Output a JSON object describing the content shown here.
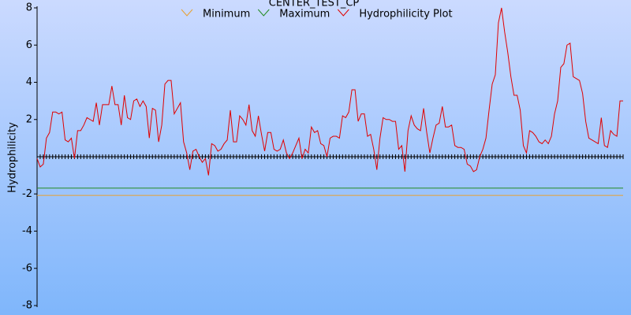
{
  "chart_data": {
    "type": "line",
    "title": "CENTER_TEST_CP",
    "y_label": "Hydrophilicity",
    "ylim": [
      -8,
      8
    ],
    "yticks": [
      -8,
      -6,
      -4,
      -2,
      2,
      4,
      6,
      8
    ],
    "reference_lines": [
      {
        "name": "Minimum",
        "color": "#e8a030",
        "value": -2.08
      },
      {
        "name": "Maximum",
        "color": "#228b22",
        "value": -1.69
      }
    ],
    "series": [
      {
        "name": "Hydrophilicity Plot",
        "color": "#e00000",
        "values": [
          -0.1,
          -0.55,
          -0.4,
          1.0,
          1.3,
          2.4,
          2.4,
          2.3,
          2.4,
          0.9,
          0.8,
          1.0,
          -0.1,
          1.4,
          1.4,
          1.7,
          2.1,
          2.0,
          1.9,
          2.9,
          1.7,
          2.8,
          2.8,
          2.8,
          3.8,
          2.8,
          2.8,
          1.7,
          3.3,
          2.1,
          2.0,
          3.0,
          3.1,
          2.7,
          3.0,
          2.7,
          1.0,
          2.6,
          2.5,
          0.8,
          1.7,
          3.9,
          4.1,
          4.1,
          2.3,
          2.6,
          2.9,
          0.8,
          0.2,
          -0.7,
          0.3,
          0.4,
          0.0,
          -0.3,
          -0.1,
          -1.0,
          0.7,
          0.6,
          0.3,
          0.4,
          0.7,
          0.9,
          2.5,
          0.8,
          0.8,
          2.2,
          2.0,
          1.7,
          2.8,
          1.4,
          1.1,
          2.2,
          1.2,
          0.3,
          1.3,
          1.3,
          0.4,
          0.3,
          0.4,
          0.9,
          0.2,
          -0.1,
          0.2,
          0.6,
          1.0,
          -0.1,
          0.4,
          0.2,
          1.6,
          1.3,
          1.4,
          0.7,
          0.6,
          0.0,
          1.0,
          1.1,
          1.1,
          1.0,
          2.2,
          2.1,
          2.4,
          3.6,
          3.6,
          1.9,
          2.3,
          2.3,
          1.1,
          1.2,
          0.4,
          -0.7,
          1.0,
          2.1,
          2.0,
          2.0,
          1.9,
          1.9,
          0.4,
          0.6,
          -0.8,
          1.4,
          2.2,
          1.7,
          1.5,
          1.4,
          2.6,
          1.3,
          0.2,
          1.0,
          1.7,
          1.8,
          2.7,
          1.6,
          1.6,
          1.7,
          0.6,
          0.5,
          0.5,
          0.4,
          -0.4,
          -0.5,
          -0.8,
          -0.7,
          0.0,
          0.4,
          1.0,
          2.5,
          3.9,
          4.4,
          7.2,
          8.0,
          6.7,
          5.6,
          4.3,
          3.3,
          3.3,
          2.5,
          0.6,
          0.2,
          1.4,
          1.3,
          1.1,
          0.8,
          0.7,
          0.9,
          0.7,
          1.1,
          2.3,
          3.0,
          4.8,
          5.0,
          6.0,
          6.1,
          4.3,
          4.2,
          4.1,
          3.4,
          1.9,
          1.0,
          0.9,
          0.8,
          0.7,
          2.1,
          0.6,
          0.5,
          1.4,
          1.2,
          1.1,
          3.0,
          3.0
        ]
      }
    ]
  }
}
